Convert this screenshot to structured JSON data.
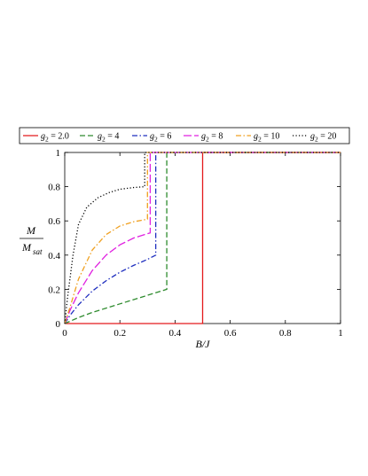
{
  "chart_data": {
    "type": "line",
    "xlabel": "B/J",
    "ylabel": {
      "numerator": "M",
      "denominator": "M",
      "denominator_sub": "sat"
    },
    "xlim": [
      0,
      1
    ],
    "ylim": [
      0,
      1
    ],
    "xticks": [
      {
        "value": 0,
        "label": "0"
      },
      {
        "value": 0.2,
        "label": "0.2"
      },
      {
        "value": 0.4,
        "label": "0.4"
      },
      {
        "value": 0.6,
        "label": "0.6"
      },
      {
        "value": 0.8,
        "label": "0.8"
      },
      {
        "value": 1,
        "label": "1"
      }
    ],
    "yticks": [
      {
        "value": 0,
        "label": "0"
      },
      {
        "value": 0.2,
        "label": "0.2"
      },
      {
        "value": 0.4,
        "label": "0.4"
      },
      {
        "value": 0.6,
        "label": "0.6"
      },
      {
        "value": 0.8,
        "label": "0.8"
      },
      {
        "value": 1,
        "label": "1"
      }
    ],
    "grid": false,
    "legend_position": "top",
    "series": [
      {
        "name_base": "g",
        "name_sub": "2",
        "name_value": " = 2.0",
        "color": "#e41a1c",
        "dash": "solid",
        "points": [
          [
            0,
            0
          ],
          [
            0.5,
            0
          ],
          [
            0.5,
            1
          ],
          [
            1,
            1
          ]
        ]
      },
      {
        "name_base": "g",
        "name_sub": "2",
        "name_value": " = 4",
        "color": "#2e8b2e",
        "dash": "dashed",
        "points": [
          [
            0,
            0
          ],
          [
            0.05,
            0.035
          ],
          [
            0.1,
            0.065
          ],
          [
            0.15,
            0.09
          ],
          [
            0.2,
            0.115
          ],
          [
            0.25,
            0.14
          ],
          [
            0.3,
            0.165
          ],
          [
            0.35,
            0.19
          ],
          [
            0.37,
            0.2
          ],
          [
            0.37,
            1
          ],
          [
            1,
            1
          ]
        ]
      },
      {
        "name_base": "g",
        "name_sub": "2",
        "name_value": " = 6",
        "color": "#1f2fbf",
        "dash": "dashdot",
        "points": [
          [
            0,
            0
          ],
          [
            0.02,
            0.05
          ],
          [
            0.05,
            0.11
          ],
          [
            0.1,
            0.19
          ],
          [
            0.15,
            0.25
          ],
          [
            0.2,
            0.3
          ],
          [
            0.25,
            0.34
          ],
          [
            0.3,
            0.375
          ],
          [
            0.33,
            0.4
          ],
          [
            0.33,
            1
          ],
          [
            1,
            1
          ]
        ]
      },
      {
        "name_base": "g",
        "name_sub": "2",
        "name_value": " = 8",
        "color": "#e020e0",
        "dash": "longdash",
        "points": [
          [
            0,
            0
          ],
          [
            0.02,
            0.08
          ],
          [
            0.05,
            0.18
          ],
          [
            0.1,
            0.31
          ],
          [
            0.15,
            0.4
          ],
          [
            0.2,
            0.46
          ],
          [
            0.25,
            0.5
          ],
          [
            0.3,
            0.525
          ],
          [
            0.31,
            0.53
          ],
          [
            0.31,
            1
          ],
          [
            1,
            1
          ]
        ]
      },
      {
        "name_base": "g",
        "name_sub": "2",
        "name_value": " = 10",
        "color": "#f0a020",
        "dash": "dashdot",
        "points": [
          [
            0,
            0
          ],
          [
            0.02,
            0.1
          ],
          [
            0.05,
            0.26
          ],
          [
            0.1,
            0.43
          ],
          [
            0.15,
            0.52
          ],
          [
            0.2,
            0.57
          ],
          [
            0.25,
            0.595
          ],
          [
            0.3,
            0.61
          ],
          [
            0.3,
            1
          ],
          [
            1,
            1
          ]
        ]
      },
      {
        "name_base": "g",
        "name_sub": "2",
        "name_value": " = 20",
        "color": "#000000",
        "dash": "dotted",
        "points": [
          [
            0,
            0
          ],
          [
            0.01,
            0.15
          ],
          [
            0.03,
            0.4
          ],
          [
            0.05,
            0.58
          ],
          [
            0.08,
            0.68
          ],
          [
            0.12,
            0.735
          ],
          [
            0.16,
            0.765
          ],
          [
            0.2,
            0.785
          ],
          [
            0.25,
            0.795
          ],
          [
            0.29,
            0.8
          ],
          [
            0.29,
            1
          ],
          [
            1,
            1
          ]
        ]
      }
    ]
  }
}
